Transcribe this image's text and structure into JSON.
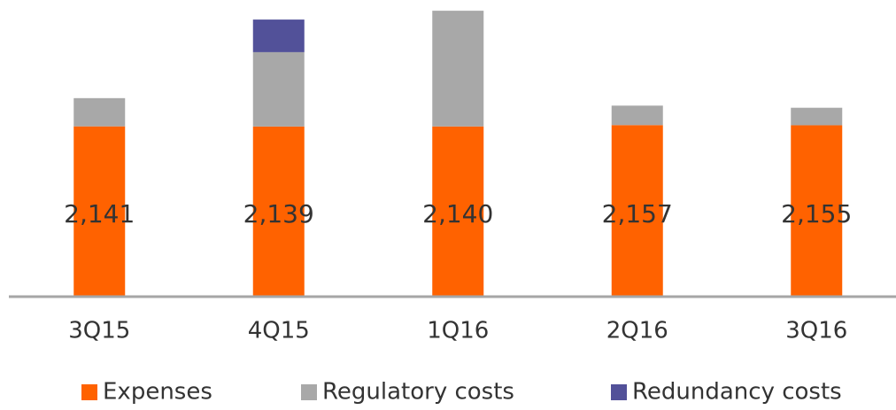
{
  "chart_data": {
    "type": "stacked_bar",
    "categories": [
      "3Q15",
      "4Q15",
      "1Q16",
      "2Q16",
      "3Q16"
    ],
    "ylim": [
      0,
      3730
    ],
    "series": [
      {
        "name": "Expenses",
        "color": "#ff6200",
        "values": [
          2141,
          2139,
          2140,
          2157,
          2155
        ],
        "value_labels": [
          "2,141",
          "2,139",
          "2,140",
          "2,157",
          "2,155"
        ]
      },
      {
        "name": "Regulatory costs",
        "color": "#a8a8a8",
        "values": [
          355,
          935,
          1455,
          245,
          220
        ]
      },
      {
        "name": "Redundancy costs",
        "color": "#525199",
        "values": [
          null,
          410,
          null,
          null,
          null
        ]
      }
    ]
  }
}
